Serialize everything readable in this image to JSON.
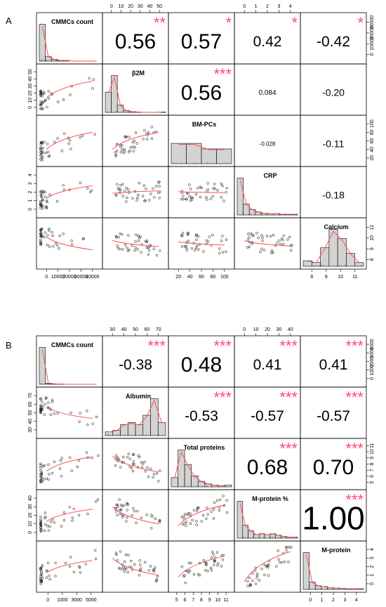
{
  "figure": {
    "panels": [
      {
        "label": "A",
        "variables": [
          "CMMCs count",
          "β2M",
          "BM-PCs",
          "CRP",
          "Calcium"
        ],
        "top_axis_ticks": [
          {
            "col": 1,
            "ticks": [
              "0",
              "10",
              "20",
              "30",
              "40",
              "50"
            ]
          },
          {
            "col": 3,
            "ticks": [
              "0",
              "1",
              "2",
              "3",
              "4"
            ]
          }
        ],
        "right_axis_ticks": [
          {
            "row": 0,
            "ticks": [
              "0",
              "10000",
              "20000",
              "30000"
            ]
          },
          {
            "row": 2,
            "ticks": [
              "20",
              "40",
              "60",
              "80",
              "100"
            ]
          },
          {
            "row": 4,
            "ticks": [
              "8",
              "9",
              "10",
              "11"
            ]
          }
        ],
        "left_axis_ticks": [
          {
            "row": 1,
            "ticks": [
              "0",
              "10",
              "20",
              "30",
              "40",
              "50"
            ]
          },
          {
            "row": 3,
            "ticks": [
              "0",
              "1",
              "2",
              "3",
              "4"
            ]
          }
        ],
        "bottom_axis_ticks": [
          {
            "col": 0,
            "ticks": [
              "0",
              "10000",
              "20000",
              "30000",
              "40000"
            ]
          },
          {
            "col": 2,
            "ticks": [
              "20",
              "40",
              "60",
              "80",
              "100"
            ]
          },
          {
            "col": 4,
            "ticks": [
              "8",
              "9",
              "10",
              "11"
            ]
          }
        ],
        "correlations": [
          {
            "row": 0,
            "col": 1,
            "value": "0.56",
            "stars": "**",
            "size": "big"
          },
          {
            "row": 0,
            "col": 2,
            "value": "0.57",
            "stars": "*",
            "size": "big"
          },
          {
            "row": 0,
            "col": 3,
            "value": "0.42",
            "stars": "*",
            "size": "mid"
          },
          {
            "row": 0,
            "col": 4,
            "value": "-0.42",
            "stars": "*",
            "size": "mid"
          },
          {
            "row": 1,
            "col": 2,
            "value": "0.56",
            "stars": "***",
            "size": "big"
          },
          {
            "row": 1,
            "col": 3,
            "value": "0.084",
            "stars": "",
            "size": "tiny"
          },
          {
            "row": 1,
            "col": 4,
            "value": "-0.20",
            "stars": "",
            "size": "small"
          },
          {
            "row": 2,
            "col": 3,
            "value": "-0.028",
            "stars": "",
            "size": "xtiny"
          },
          {
            "row": 2,
            "col": 4,
            "value": "-0.11",
            "stars": "",
            "size": "small"
          },
          {
            "row": 3,
            "col": 4,
            "value": "-0.18",
            "stars": "",
            "size": "small"
          }
        ]
      },
      {
        "label": "B",
        "variables": [
          "CMMCs count",
          "Albumin",
          "Total proteins",
          "M-protein %",
          "M-protein"
        ],
        "top_axis_ticks": [
          {
            "col": 1,
            "ticks": [
              "30",
              "40",
              "50",
              "60",
              "70"
            ]
          },
          {
            "col": 3,
            "ticks": [
              "0",
              "10",
              "20",
              "30",
              "40"
            ]
          }
        ],
        "right_axis_ticks": [
          {
            "row": 0,
            "ticks": [
              "0",
              "1000",
              "2000",
              "3000",
              "4000"
            ]
          },
          {
            "row": 2,
            "ticks": [
              "5",
              "6",
              "7",
              "8",
              "9",
              "10",
              "11"
            ]
          },
          {
            "row": 4,
            "ticks": [
              "0",
              "1",
              "2",
              "3",
              "4"
            ]
          }
        ],
        "left_axis_ticks": [
          {
            "row": 1,
            "ticks": [
              "30",
              "40",
              "50",
              "60",
              "70"
            ]
          },
          {
            "row": 3,
            "ticks": [
              "0",
              "10",
              "20",
              "30",
              "40"
            ]
          }
        ],
        "bottom_axis_ticks": [
          {
            "col": 0,
            "ticks": [
              "0",
              "1000",
              "3000",
              "5000"
            ]
          },
          {
            "col": 2,
            "ticks": [
              "5",
              "6",
              "7",
              "8",
              "9",
              "10",
              "11"
            ]
          },
          {
            "col": 4,
            "ticks": [
              "0",
              "1",
              "2",
              "3",
              "4"
            ]
          }
        ],
        "correlations": [
          {
            "row": 0,
            "col": 1,
            "value": "-0.38",
            "stars": "***",
            "size": "mid"
          },
          {
            "row": 0,
            "col": 2,
            "value": "0.48",
            "stars": "***",
            "size": "big"
          },
          {
            "row": 0,
            "col": 3,
            "value": "0.41",
            "stars": "***",
            "size": "mid"
          },
          {
            "row": 0,
            "col": 4,
            "value": "0.41",
            "stars": "***",
            "size": "mid"
          },
          {
            "row": 1,
            "col": 2,
            "value": "-0.53",
            "stars": "***",
            "size": "mid"
          },
          {
            "row": 1,
            "col": 3,
            "value": "-0.57",
            "stars": "***",
            "size": "mid"
          },
          {
            "row": 1,
            "col": 4,
            "value": "-0.57",
            "stars": "***",
            "size": "mid"
          },
          {
            "row": 2,
            "col": 3,
            "value": "0.68",
            "stars": "***",
            "size": "big"
          },
          {
            "row": 2,
            "col": 4,
            "value": "0.70",
            "stars": "***",
            "size": "big"
          },
          {
            "row": 3,
            "col": 4,
            "value": "1.00",
            "stars": "***",
            "size": "huge"
          }
        ]
      }
    ]
  },
  "style": {
    "star_color": "#ff4b6e",
    "line_color": "#ff5050",
    "hist_fill": "#d3d3d3"
  },
  "chart_data": [
    {
      "type": "scatter",
      "title": "",
      "panel": "A",
      "variables": [
        "CMMCs count",
        "β2M",
        "BM-PCs",
        "CRP",
        "Calcium"
      ],
      "ranges": [
        [
          0,
          42000
        ],
        [
          0,
          50
        ],
        [
          5,
          105
        ],
        [
          0,
          4.5
        ],
        [
          7.5,
          11.5
        ]
      ],
      "correlations": [
        [
          null,
          0.56,
          0.57,
          0.42,
          -0.42
        ],
        [
          null,
          null,
          0.56,
          0.084,
          -0.2
        ],
        [
          null,
          null,
          null,
          -0.028,
          -0.11
        ],
        [
          null,
          null,
          null,
          null,
          -0.18
        ]
      ]
    },
    {
      "type": "scatter",
      "title": "",
      "panel": "B",
      "variables": [
        "CMMCs count",
        "Albumin",
        "Total proteins",
        "M-protein %",
        "M-protein"
      ],
      "ranges": [
        [
          0,
          5300
        ],
        [
          28,
          73
        ],
        [
          4.7,
          11.1
        ],
        [
          0,
          45
        ],
        [
          0,
          4.6
        ]
      ],
      "correlations": [
        [
          null,
          -0.38,
          0.48,
          0.41,
          0.41
        ],
        [
          null,
          null,
          -0.53,
          -0.57,
          -0.57
        ],
        [
          null,
          null,
          null,
          0.68,
          0.7
        ],
        [
          null,
          null,
          null,
          null,
          1.0
        ]
      ]
    }
  ]
}
